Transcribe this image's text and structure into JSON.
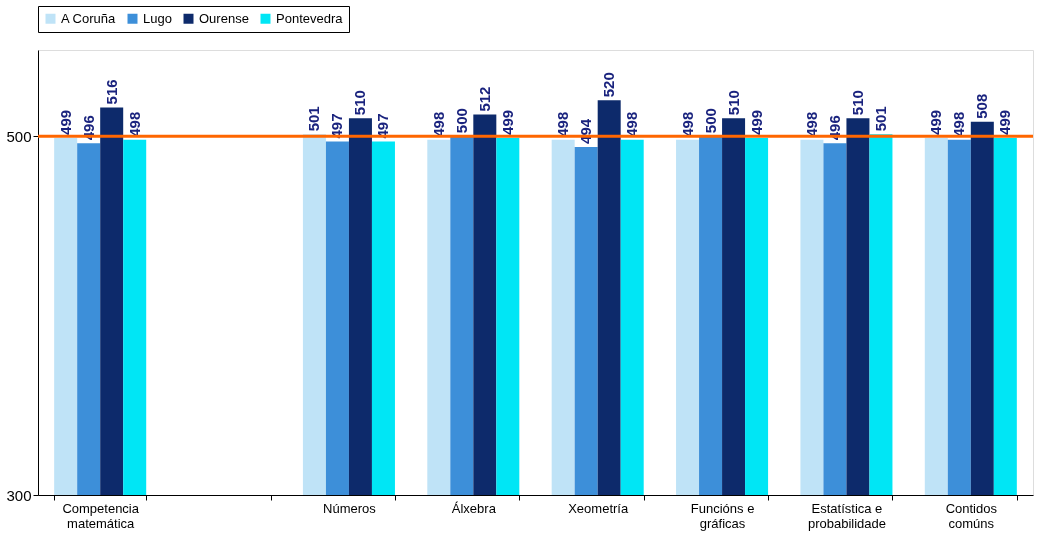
{
  "chart_data": {
    "type": "bar",
    "categories": [
      "Competencia matemática",
      null,
      "Números",
      "Álxebra",
      "Xeometría",
      "Funcións e gráficas",
      "Estatística e probabilidade",
      "Contidos comúns"
    ],
    "series": [
      {
        "name": "A Coruña",
        "color": "#bfe3f7",
        "values": [
          499,
          null,
          501,
          498,
          498,
          498,
          498,
          499
        ]
      },
      {
        "name": "Lugo",
        "color": "#3d8fd9",
        "values": [
          496,
          null,
          497,
          500,
          494,
          500,
          496,
          498
        ]
      },
      {
        "name": "Ourense",
        "color": "#0d2a6b",
        "values": [
          516,
          null,
          510,
          512,
          520,
          510,
          510,
          508
        ]
      },
      {
        "name": "Pontevedra",
        "color": "#00e6f5",
        "values": [
          498,
          null,
          497,
          499,
          498,
          499,
          501,
          499
        ]
      }
    ],
    "ylim": [
      300,
      548
    ],
    "yticks": [
      300,
      500
    ],
    "ref_lines": [
      {
        "axis": "y",
        "value": 500,
        "color": "#ff6600"
      }
    ],
    "data_labels": true,
    "legend": "top"
  }
}
